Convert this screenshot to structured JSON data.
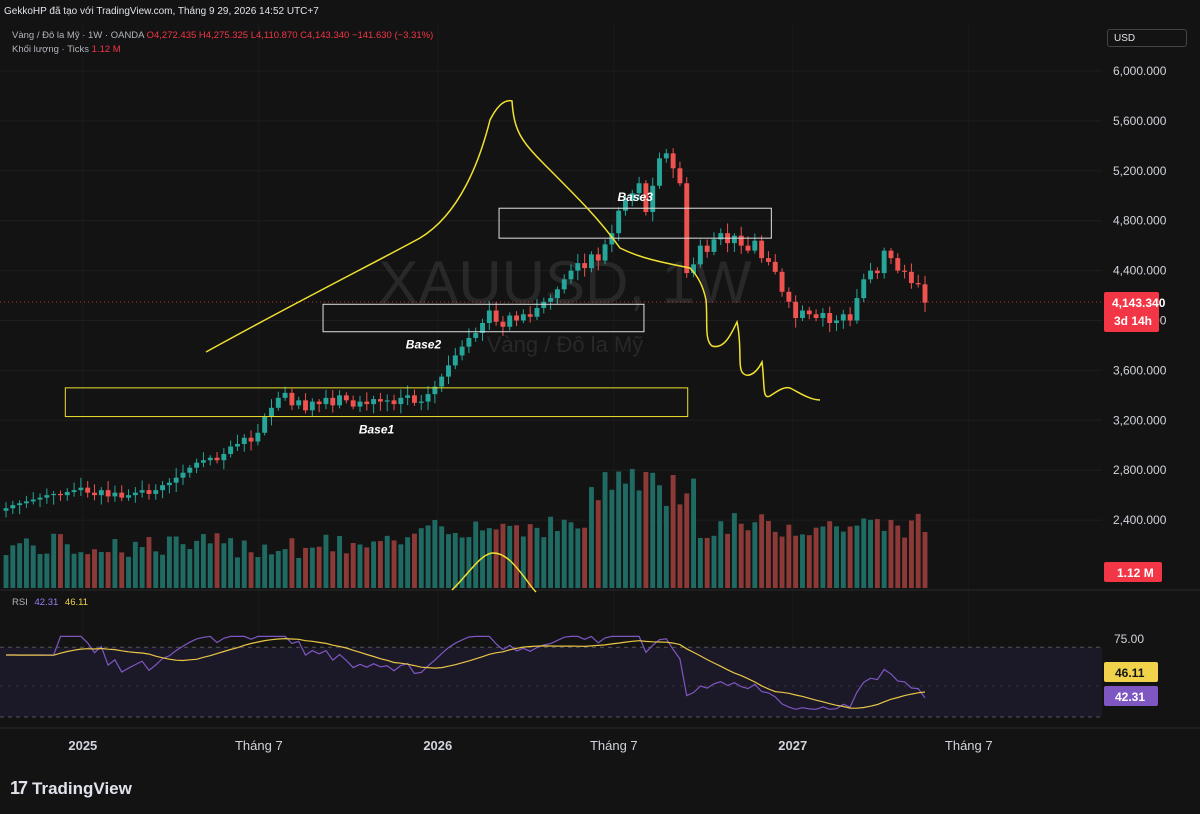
{
  "header": {
    "topline": "GekkoHP đã tạo với TradingView.com, Tháng 9 29, 2026 14:52 UTC+7"
  },
  "legend": {
    "symbol": "Vàng / Đô la Mỹ · 1W · OANDA",
    "open": "O4,272.435",
    "high": "H4,275.325",
    "low": "L4,110.870",
    "close": "C4,143.340",
    "change": "−141.630 (−3.31%)",
    "volume_label": "Khối lượng · Ticks",
    "volume_value": "1.12 M"
  },
  "currency": "USD",
  "watermark": {
    "symbol": "XAUUSD, 1W",
    "name": "Vàng / Đô la Mỹ"
  },
  "price_badge": {
    "price": "4,143.340",
    "countdown": "3d 14h"
  },
  "volume_badge": "1.12 M",
  "rsi": {
    "label": "RSI",
    "value": "42.31",
    "ma_value": "46.11",
    "level_label": "75.00",
    "badge_ma": "46.11",
    "badge_rsi": "42.31"
  },
  "annotations": {
    "base1": "Base1",
    "base2": "Base2",
    "base3": "Base3"
  },
  "brand": "TradingView",
  "colors": {
    "up": "#26a69a",
    "down": "#ef5350",
    "vol_up": "#1f6b63",
    "vol_down": "#8c3a38",
    "projection": "#f0e130",
    "rsi_line": "#7e57c2",
    "rsi_ma": "#e8c547",
    "price_badge": "#f23645"
  },
  "chart_data": {
    "type": "candlestick",
    "title": "",
    "y_ticks": [
      "6,000.000",
      "5,600.000",
      "5,200.000",
      "4,800.000",
      "4,400.000",
      "4,000.000",
      "3,600.000",
      "3,200.000",
      "2,800.000",
      "2,400.000"
    ],
    "y_tick_values": [
      6000,
      5600,
      5200,
      4800,
      4400,
      4000,
      3600,
      3200,
      2800,
      2400
    ],
    "x_ticks": [
      "2025",
      "Tháng 7",
      "2026",
      "Tháng 7",
      "2027",
      "Tháng 7"
    ],
    "x_tick_dates": [
      "2025-01-01",
      "2025-07-01",
      "2026-01-01",
      "2026-07-01",
      "2027-01-01",
      "2027-07-01"
    ],
    "x_range": [
      "2024-10-14",
      "2027-11-15"
    ],
    "ylim": [
      2100,
      6250
    ],
    "first_bar": "2024-10-14",
    "bar_interval_days": 7,
    "closes": [
      2495,
      2520,
      2535,
      2550,
      2565,
      2580,
      2600,
      2610,
      2600,
      2625,
      2640,
      2660,
      2620,
      2600,
      2640,
      2590,
      2620,
      2580,
      2600,
      2620,
      2640,
      2610,
      2640,
      2680,
      2700,
      2740,
      2780,
      2820,
      2860,
      2880,
      2900,
      2880,
      2930,
      2990,
      3010,
      3060,
      3030,
      3100,
      3230,
      3300,
      3380,
      3420,
      3320,
      3360,
      3280,
      3350,
      3330,
      3380,
      3320,
      3400,
      3360,
      3310,
      3350,
      3330,
      3370,
      3350,
      3360,
      3330,
      3380,
      3400,
      3340,
      3350,
      3410,
      3470,
      3550,
      3640,
      3720,
      3790,
      3860,
      3900,
      3980,
      4080,
      3990,
      3950,
      4040,
      4000,
      4050,
      4030,
      4100,
      4150,
      4180,
      4250,
      4330,
      4400,
      4460,
      4420,
      4530,
      4480,
      4610,
      4700,
      4880,
      4960,
      5020,
      5100,
      4870,
      5080,
      5300,
      5340,
      5220,
      5100,
      4380,
      4450,
      4600,
      4550,
      4650,
      4700,
      4620,
      4680,
      4600,
      4560,
      4640,
      4500,
      4470,
      4390,
      4230,
      4150,
      4020,
      4080,
      4050,
      4020,
      4060,
      3980,
      4000,
      4050,
      4000,
      4180,
      4330,
      4400,
      4380,
      4560,
      4500,
      4400,
      4390,
      4300,
      4290,
      4143
    ],
    "volume_max": 3000000,
    "volume_last": 1120000,
    "rsi_level_upper": 75,
    "rsi_level_lower": 30,
    "rsi_last": 42.31,
    "rsi_ma_last": 46.11,
    "zones": [
      {
        "label": "Base1",
        "start": "2024-12-14",
        "end": "2026-09-15",
        "low": 3230,
        "high": 3460
      },
      {
        "label": "Base2",
        "start": "2025-09-05",
        "end": "2026-08-01",
        "low": 3910,
        "high": 4130
      },
      {
        "label": "Base3",
        "start": "2026-03-05",
        "end": "2026-12-10",
        "low": 4660,
        "high": 4900
      }
    ]
  }
}
